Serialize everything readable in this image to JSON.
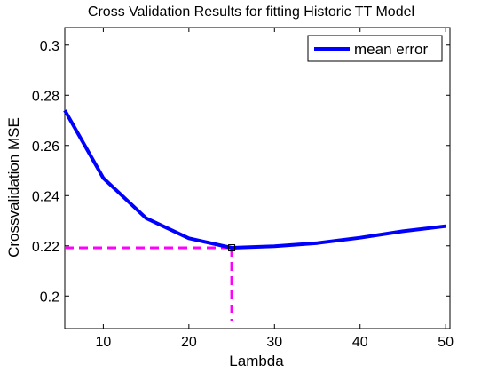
{
  "chart_data": {
    "type": "line",
    "title": "Cross Validation Results for fitting Historic TT Model",
    "xlabel": "Lambda",
    "ylabel": "Crossvalidation MSE",
    "xlim": [
      5.5,
      50.5
    ],
    "ylim": [
      0.187,
      0.307
    ],
    "x_ticks": [
      10,
      20,
      30,
      40,
      50
    ],
    "x_tick_labels": [
      "10",
      "20",
      "30",
      "40",
      "50"
    ],
    "y_ticks": [
      0.2,
      0.22,
      0.24,
      0.26,
      0.28,
      0.3
    ],
    "y_tick_labels": [
      "0.2",
      "0.22",
      "0.24",
      "0.26",
      "0.28",
      "0.3"
    ],
    "grid": false,
    "legend_position": "top-right",
    "series": [
      {
        "name": "mean error",
        "color": "#0000ff",
        "x": [
          5.5,
          10,
          15,
          20,
          25,
          30,
          35,
          40,
          45,
          50
        ],
        "y": [
          0.274,
          0.247,
          0.231,
          0.223,
          0.2192,
          0.2198,
          0.2211,
          0.2232,
          0.2258,
          0.2278
        ]
      }
    ],
    "optimum": {
      "x": 25,
      "y": 0.2192,
      "line_color": "#ff00ff",
      "marker_color": "#000000"
    }
  }
}
